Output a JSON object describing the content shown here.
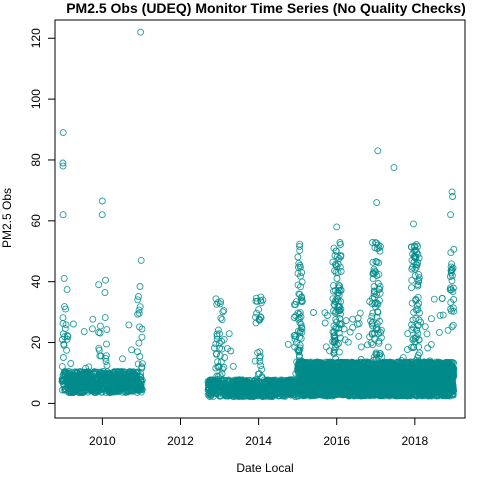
{
  "chart_data": {
    "type": "scatter",
    "title": "PM2.5 Obs (UDEQ) Monitor Time Series (No Quality Checks)",
    "xlabel": "Date Local",
    "ylabel": "PM2.5 Obs",
    "xlim": [
      "2008-10-15",
      "2019-04-15"
    ],
    "ylim": [
      -4.8,
      126
    ],
    "x_ticks": [
      "2010",
      "2012",
      "2014",
      "2016",
      "2018"
    ],
    "y_ticks": [
      0,
      20,
      40,
      60,
      80,
      100,
      120
    ],
    "grid": false,
    "legend": "none",
    "marker": "open-circle",
    "color": "#008b8b",
    "highlight_points": [
      {
        "x": "2010-12-25",
        "y": 122
      },
      {
        "x": "2008-12-31",
        "y": 89
      },
      {
        "x": "2008-12-28",
        "y": 79
      },
      {
        "x": "2008-12-29",
        "y": 78
      },
      {
        "x": "2008-12-30",
        "y": 62
      },
      {
        "x": "2009-12-31",
        "y": 66.5
      },
      {
        "x": "2009-12-30",
        "y": 62
      },
      {
        "x": "2010-12-30",
        "y": 47
      },
      {
        "x": "2017-01-20",
        "y": 83
      },
      {
        "x": "2017-06-20",
        "y": 77.5
      },
      {
        "x": "2018-12-15",
        "y": 69.5
      },
      {
        "x": "2018-12-20",
        "y": 68
      },
      {
        "x": "2017-01-10",
        "y": 66
      },
      {
        "x": "2016-01-01",
        "y": 58
      },
      {
        "x": "2017-12-20",
        "y": 59
      },
      {
        "x": "2018-12-01",
        "y": 62
      }
    ],
    "series": [
      {
        "segments": [
          {
            "start": "2008-12-20",
            "end": "2011-01-10",
            "base": 7,
            "spread": 5,
            "winter_peak": 35
          },
          {
            "start": "2012-09-15",
            "end": "2014-12-31",
            "base": 5,
            "spread": 4,
            "winter_peak": 30
          },
          {
            "start": "2015-01-01",
            "end": "2018-12-31",
            "base": 8,
            "spread": 8,
            "winter_peak": 45
          }
        ]
      }
    ]
  }
}
